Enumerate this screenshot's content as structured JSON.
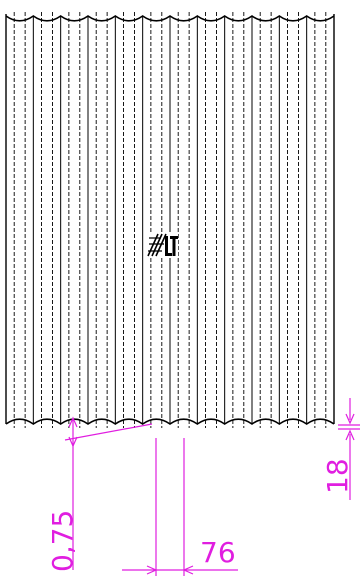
{
  "drawing": {
    "colors": {
      "outline": "#000000",
      "dimension": "#e01ee0",
      "background": "#ffffff"
    },
    "rib_count": 12,
    "logo": {
      "kind": "logo",
      "icon": "manufacturer-logo-icon"
    },
    "dimensions": {
      "wave_depth": "0,75",
      "pitch": "76",
      "edge_offset": "18"
    }
  }
}
